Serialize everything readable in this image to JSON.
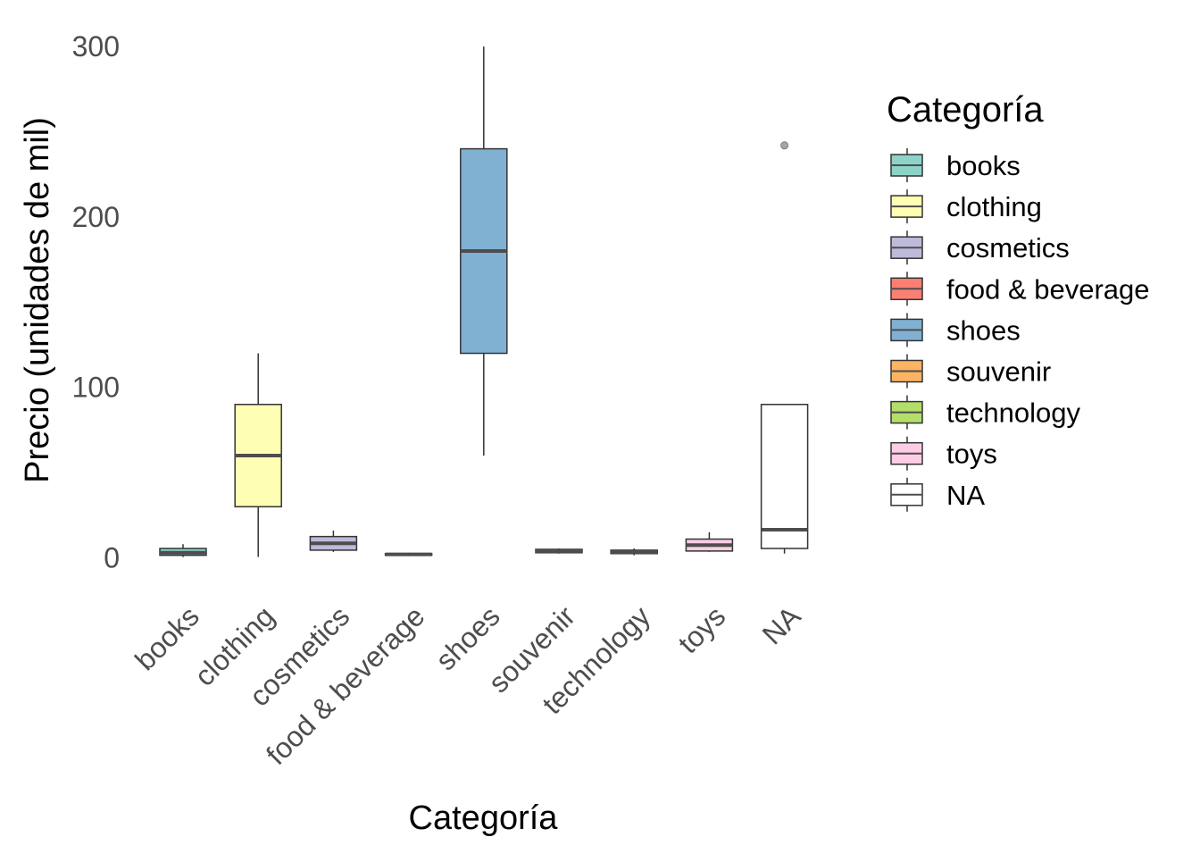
{
  "chart_data": {
    "type": "boxplot",
    "title": "",
    "xlabel": "Categoría",
    "ylabel": "Precio (unidades de  mil)",
    "ylim": [
      -5,
      305
    ],
    "yticks": [
      0,
      100,
      200,
      300
    ],
    "grid": false,
    "legend": {
      "title": "Categoría",
      "position": "right"
    },
    "categories": [
      "books",
      "clothing",
      "cosmetics",
      "food & beverage",
      "shoes",
      "souvenir",
      "technology",
      "toys",
      "NA"
    ],
    "colors": [
      "#8dd3c7",
      "#ffffb3",
      "#bebada",
      "#fb8072",
      "#80b1d3",
      "#fdb462",
      "#b3de69",
      "#fccde5",
      "#ffffff"
    ],
    "box_stats": [
      {
        "min": 0.5,
        "q1": 1.5,
        "median": 3.0,
        "q3": 5.5,
        "max": 8.0,
        "outliers": []
      },
      {
        "min": 0.5,
        "q1": 30.0,
        "median": 60.0,
        "q3": 90.0,
        "max": 120.0,
        "outliers": []
      },
      {
        "min": 3.5,
        "q1": 4.5,
        "median": 8.5,
        "q3": 12.5,
        "max": 16.0,
        "outliers": []
      },
      {
        "min": 1.0,
        "q1": 1.5,
        "median": 2.0,
        "q3": 2.5,
        "max": 3.0,
        "outliers": []
      },
      {
        "min": 60.0,
        "q1": 120.0,
        "median": 180.0,
        "q3": 240.0,
        "max": 300.0,
        "outliers": []
      },
      {
        "min": 2.5,
        "q1": 3.0,
        "median": 4.0,
        "q3": 5.0,
        "max": 5.5,
        "outliers": []
      },
      {
        "min": 1.5,
        "q1": 2.5,
        "median": 3.5,
        "q3": 4.5,
        "max": 5.5,
        "outliers": []
      },
      {
        "min": 3.5,
        "q1": 4.0,
        "median": 7.5,
        "q3": 11.0,
        "max": 15.0,
        "outliers": []
      },
      {
        "min": 2.5,
        "q1": 5.5,
        "median": 16.5,
        "q3": 90.0,
        "max": 90.0,
        "outliers": [
          242.0
        ]
      }
    ]
  }
}
